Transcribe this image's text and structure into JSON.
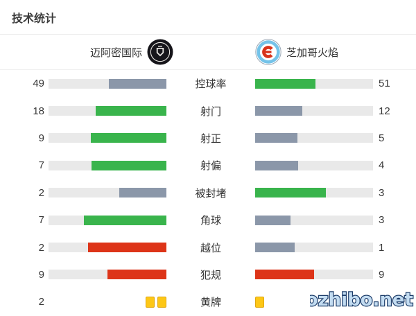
{
  "page": {
    "title": "技术统计",
    "watermark": "Yoozhibo.net"
  },
  "teams": {
    "home": {
      "name": "迈阿密国际",
      "logo": "inter-miami-crest"
    },
    "away": {
      "name": "芝加哥火焰",
      "logo": "chicago-fire-crest",
      "logo_letter": "C"
    }
  },
  "colors": {
    "win": "#39b44c",
    "lose": "#8b97a9",
    "negative": "#dd3418",
    "track": "#e9e9e9",
    "card_yellow": "#fdc716",
    "card_border": "#dfa60e"
  },
  "chart_data": {
    "type": "bar",
    "orientation": "horizontal-paired",
    "title": "技术统计",
    "grid": false,
    "legend_position": "header",
    "categories": [
      "控球率",
      "射门",
      "射正",
      "射偏",
      "被封堵",
      "角球",
      "越位",
      "犯规",
      "黄牌"
    ],
    "series": [
      {
        "name": "迈阿密国际",
        "values": [
          49,
          18,
          9,
          7,
          2,
          7,
          2,
          9,
          2
        ]
      },
      {
        "name": "芝加哥火焰",
        "values": [
          51,
          12,
          5,
          4,
          3,
          3,
          1,
          9,
          1
        ]
      }
    ],
    "bar_scale": "value / (home + away)",
    "rows": [
      {
        "label": "控球率",
        "home": 49,
        "away": 51,
        "home_color": "lose",
        "away_color": "win"
      },
      {
        "label": "射门",
        "home": 18,
        "away": 12,
        "home_color": "win",
        "away_color": "lose"
      },
      {
        "label": "射正",
        "home": 9,
        "away": 5,
        "home_color": "win",
        "away_color": "lose"
      },
      {
        "label": "射偏",
        "home": 7,
        "away": 4,
        "home_color": "win",
        "away_color": "lose"
      },
      {
        "label": "被封堵",
        "home": 2,
        "away": 3,
        "home_color": "lose",
        "away_color": "win"
      },
      {
        "label": "角球",
        "home": 7,
        "away": 3,
        "home_color": "win",
        "away_color": "lose"
      },
      {
        "label": "越位",
        "home": 2,
        "away": 1,
        "home_color": "negative",
        "away_color": "lose"
      },
      {
        "label": "犯规",
        "home": 9,
        "away": 9,
        "home_color": "negative",
        "away_color": "negative"
      },
      {
        "label": "黄牌",
        "home": 2,
        "away": 1,
        "type": "cards"
      }
    ]
  }
}
